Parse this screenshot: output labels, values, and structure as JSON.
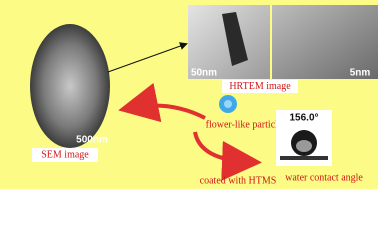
{
  "sem": {
    "label": "SEM image",
    "scale_bar": "500nm"
  },
  "hrtem": {
    "label": "HRTEM image",
    "scale_left": "50nm",
    "scale_right": "5nm"
  },
  "particle": {
    "label": "flower-like particle"
  },
  "coating": {
    "label": "coated with HTMS"
  },
  "contact": {
    "angle": "156.0°",
    "label": "water contact angle"
  }
}
